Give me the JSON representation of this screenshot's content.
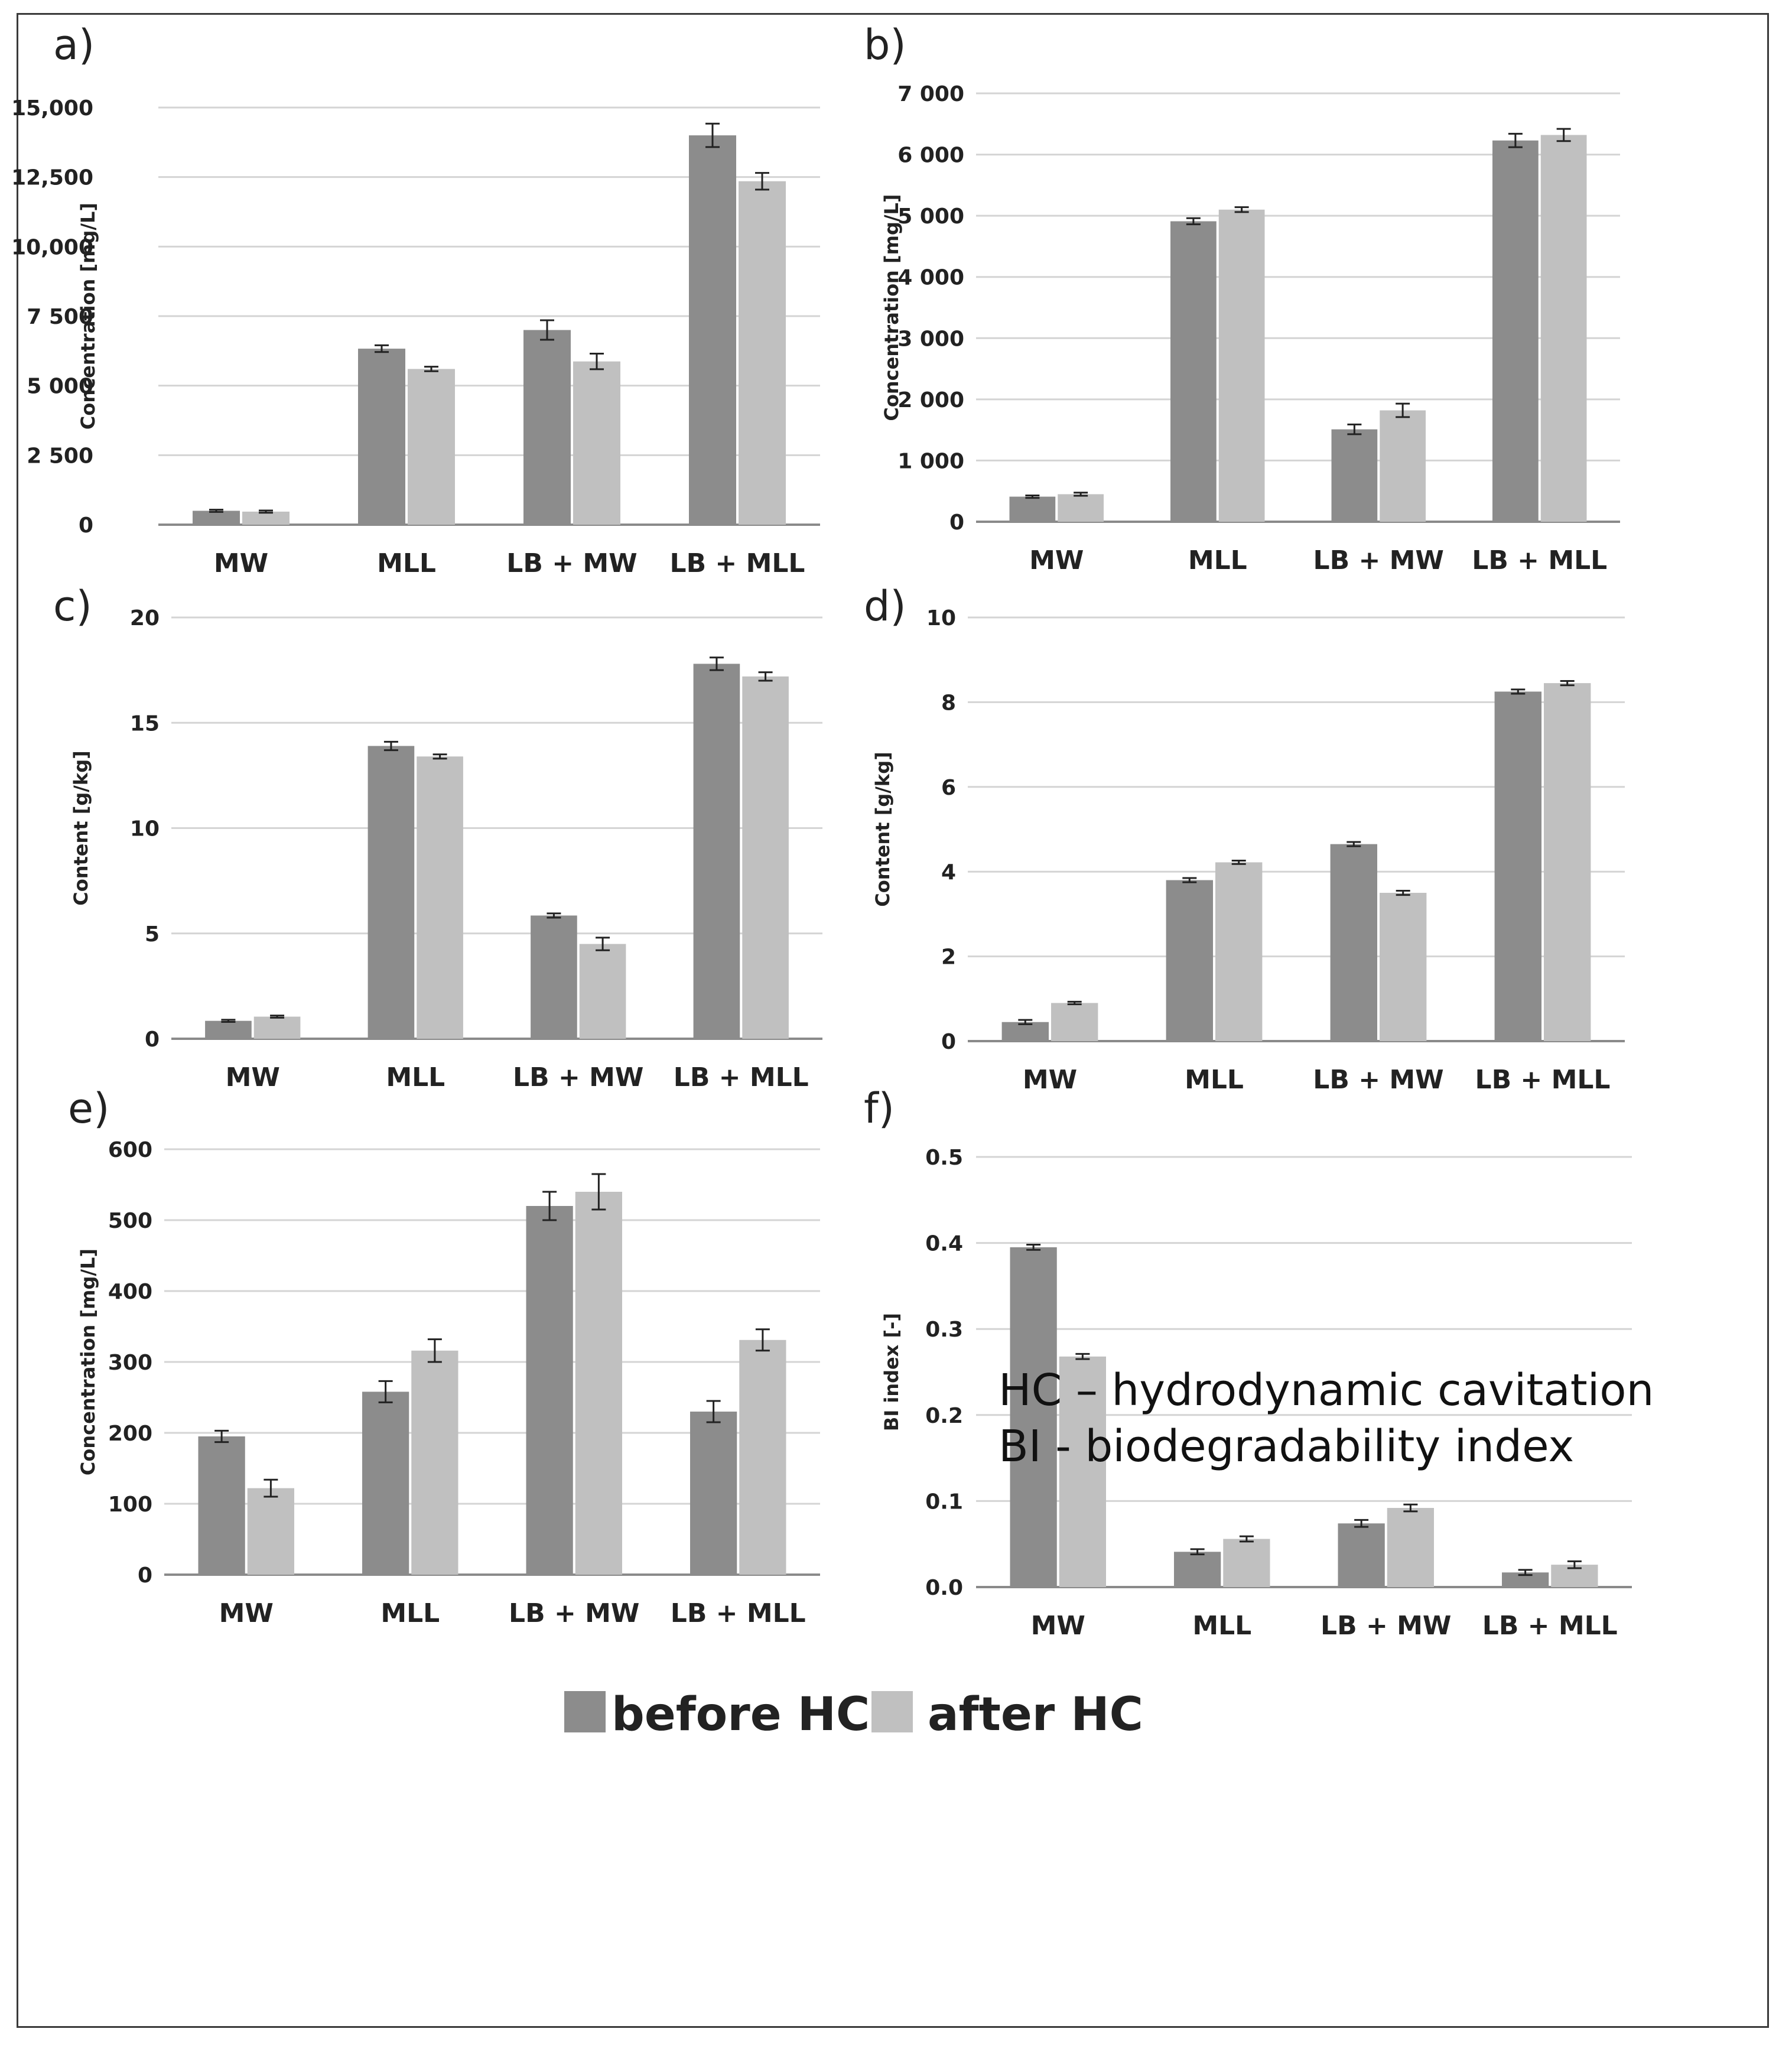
{
  "legend": {
    "before_label": "before HC",
    "after_label": "after HC",
    "before_color": "#8c8c8c",
    "after_color": "#c0c0c0"
  },
  "notes": {
    "hc": "HC – hydrodynamic cavitation",
    "bi": "BI - biodegradability index"
  },
  "chart_data": [
    {
      "panel": "a)",
      "type": "bar",
      "categories": [
        "MW",
        "MLL",
        "LB + MW",
        "LB + MLL"
      ],
      "ylabel": "Concentration [mg/L]",
      "ylim": [
        0,
        15000
      ],
      "ticks": [
        0,
        2500,
        5000,
        7500,
        10000,
        12500,
        15000
      ],
      "tick_labels": [
        "0",
        "2 500",
        "5 000",
        "7 500",
        "10,000",
        "12,500",
        "15,000"
      ],
      "series": [
        {
          "name": "before HC",
          "values": [
            500,
            6330,
            7000,
            14000
          ],
          "errors": [
            40,
            120,
            350,
            420
          ]
        },
        {
          "name": "after HC",
          "values": [
            470,
            5600,
            5870,
            12350
          ],
          "errors": [
            40,
            80,
            280,
            300
          ]
        }
      ]
    },
    {
      "panel": "b)",
      "type": "bar",
      "categories": [
        "MW",
        "MLL",
        "LB + MW",
        "LB + MLL"
      ],
      "ylabel": "Concentration [mg/L]",
      "ylim": [
        0,
        7000
      ],
      "ticks": [
        0,
        1000,
        2000,
        3000,
        4000,
        5000,
        6000,
        7000
      ],
      "tick_labels": [
        "0",
        "1 000",
        "2 000",
        "3 000",
        "4 000",
        "5 000",
        "6 000",
        "7 000"
      ],
      "series": [
        {
          "name": "before HC",
          "values": [
            410,
            4910,
            1510,
            6230
          ],
          "errors": [
            20,
            50,
            80,
            110
          ]
        },
        {
          "name": "after HC",
          "values": [
            450,
            5100,
            1820,
            6320
          ],
          "errors": [
            25,
            40,
            110,
            100
          ]
        }
      ]
    },
    {
      "panel": "c)",
      "type": "bar",
      "categories": [
        "MW",
        "MLL",
        "LB + MW",
        "LB + MLL"
      ],
      "ylabel": "Content [g/kg]",
      "ylim": [
        0,
        20
      ],
      "ticks": [
        0,
        5,
        10,
        15,
        20
      ],
      "tick_labels": [
        "0",
        "5",
        "10",
        "15",
        "20"
      ],
      "series": [
        {
          "name": "before HC",
          "values": [
            0.85,
            13.9,
            5.85,
            17.8
          ],
          "errors": [
            0.05,
            0.2,
            0.1,
            0.3
          ]
        },
        {
          "name": "after HC",
          "values": [
            1.05,
            13.4,
            4.5,
            17.2
          ],
          "errors": [
            0.05,
            0.1,
            0.3,
            0.2
          ]
        }
      ]
    },
    {
      "panel": "d)",
      "type": "bar",
      "categories": [
        "MW",
        "MLL",
        "LB + MW",
        "LB + MLL"
      ],
      "ylabel": "Content [g/kg]",
      "ylim": [
        0,
        10
      ],
      "ticks": [
        0,
        2,
        4,
        6,
        8,
        10
      ],
      "tick_labels": [
        "0",
        "2",
        "4",
        "6",
        "8",
        "10"
      ],
      "series": [
        {
          "name": "before HC",
          "values": [
            0.45,
            3.8,
            4.65,
            8.25
          ],
          "errors": [
            0.05,
            0.05,
            0.05,
            0.05
          ]
        },
        {
          "name": "after HC",
          "values": [
            0.9,
            4.22,
            3.5,
            8.45
          ],
          "errors": [
            0.03,
            0.04,
            0.05,
            0.05
          ]
        }
      ]
    },
    {
      "panel": "e)",
      "type": "bar",
      "categories": [
        "MW",
        "MLL",
        "LB + MW",
        "LB + MLL"
      ],
      "ylabel": "Concentration [mg/L]",
      "ylim": [
        0,
        600
      ],
      "ticks": [
        0,
        100,
        200,
        300,
        400,
        500,
        600
      ],
      "tick_labels": [
        "0",
        "100",
        "200",
        "300",
        "400",
        "500",
        "600"
      ],
      "series": [
        {
          "name": "before HC",
          "values": [
            195,
            258,
            520,
            230
          ],
          "errors": [
            8,
            15,
            20,
            15
          ]
        },
        {
          "name": "after HC",
          "values": [
            122,
            316,
            540,
            331
          ],
          "errors": [
            12,
            16,
            25,
            15
          ]
        }
      ]
    },
    {
      "panel": "f)",
      "type": "bar",
      "categories": [
        "MW",
        "MLL",
        "LB + MW",
        "LB + MLL"
      ],
      "ylabel": "BI index [-]",
      "ylim": [
        0,
        0.5
      ],
      "ticks": [
        0,
        0.1,
        0.2,
        0.3,
        0.4,
        0.5
      ],
      "tick_labels": [
        "0.0",
        "0.1",
        "0.2",
        "0.3",
        "0.4",
        "0.5"
      ],
      "series": [
        {
          "name": "before HC",
          "values": [
            0.395,
            0.041,
            0.074,
            0.017
          ],
          "errors": [
            0.003,
            0.003,
            0.004,
            0.003
          ]
        },
        {
          "name": "after HC",
          "values": [
            0.268,
            0.056,
            0.092,
            0.026
          ],
          "errors": [
            0.003,
            0.003,
            0.004,
            0.004
          ]
        }
      ]
    }
  ]
}
